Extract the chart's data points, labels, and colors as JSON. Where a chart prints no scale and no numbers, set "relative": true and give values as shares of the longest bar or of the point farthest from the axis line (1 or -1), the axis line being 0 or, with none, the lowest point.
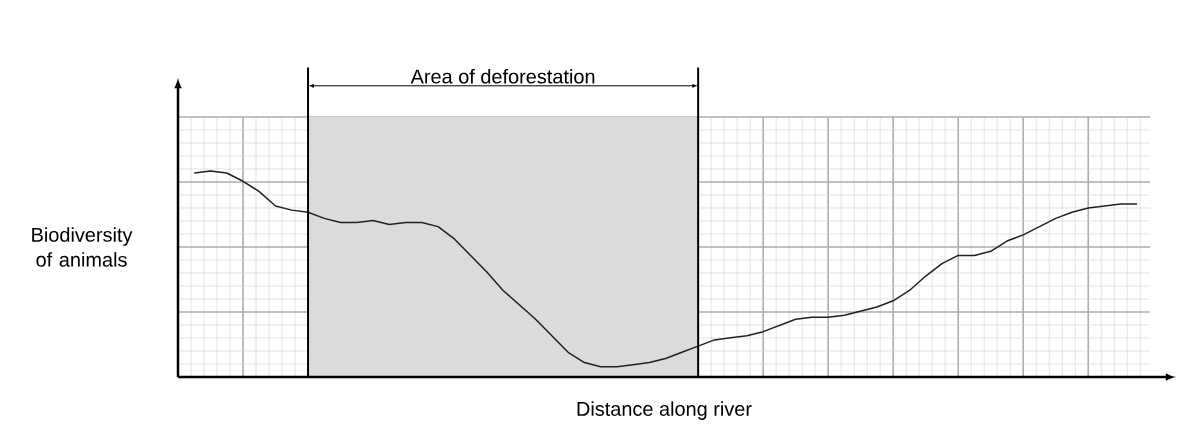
{
  "chart_data": {
    "type": "line",
    "relative": true,
    "xlabel": "Distance along river",
    "ylabel": "Biodiversity of animals",
    "grid": true,
    "color": "#231f20",
    "categories": [
      null,
      null,
      null,
      null,
      null,
      null,
      null,
      null,
      null,
      null,
      null,
      null,
      null,
      null,
      null,
      null,
      null,
      null,
      null,
      null,
      null,
      null,
      null,
      null,
      null,
      null,
      null,
      null,
      null,
      null,
      null,
      null,
      null,
      null,
      null,
      null,
      null,
      null,
      null,
      null,
      null,
      null,
      null,
      null,
      null,
      null,
      null,
      null,
      null,
      null,
      null,
      null,
      null,
      null,
      null,
      null,
      null,
      null,
      null
    ],
    "values": [
      0.99,
      1.0,
      0.99,
      0.95,
      0.9,
      0.83,
      0.81,
      0.8,
      0.77,
      0.75,
      0.75,
      0.76,
      0.74,
      0.75,
      0.75,
      0.73,
      0.67,
      0.59,
      0.51,
      0.42,
      0.35,
      0.28,
      0.2,
      0.12,
      0.07,
      0.05,
      0.05,
      0.06,
      0.07,
      0.09,
      0.12,
      0.15,
      0.18,
      0.19,
      0.2,
      0.22,
      0.25,
      0.28,
      0.29,
      0.29,
      0.3,
      0.32,
      0.34,
      0.37,
      0.42,
      0.49,
      0.55,
      0.59,
      0.59,
      0.61,
      0.66,
      0.69,
      0.73,
      0.77,
      0.8,
      0.82,
      0.83,
      0.84,
      0.84
    ],
    "annotations": [
      "Area of deforestation"
    ]
  }
}
